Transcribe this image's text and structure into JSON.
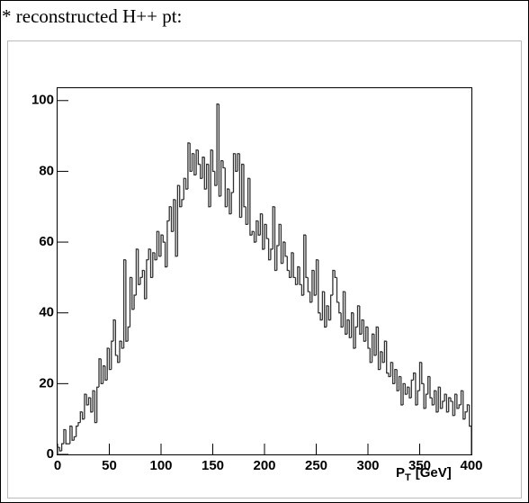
{
  "chart_data": {
    "type": "histogram",
    "title": "* reconstructed H++ pt:",
    "x_label_main": "P",
    "x_label_sub": "T",
    "x_label_unit": "[GeV]",
    "bins": [
      0,
      2,
      4,
      6,
      8,
      10,
      12,
      14,
      16,
      18,
      20,
      22,
      24,
      26,
      28,
      30,
      32,
      34,
      36,
      38,
      40,
      42,
      44,
      46,
      48,
      50,
      52,
      54,
      56,
      58,
      60,
      62,
      64,
      66,
      68,
      70,
      72,
      74,
      76,
      78,
      80,
      82,
      84,
      86,
      88,
      90,
      92,
      94,
      96,
      98,
      100,
      102,
      104,
      106,
      108,
      110,
      112,
      114,
      116,
      118,
      120,
      122,
      124,
      126,
      128,
      130,
      132,
      134,
      136,
      138,
      140,
      142,
      144,
      146,
      148,
      150,
      152,
      154,
      156,
      158,
      160,
      162,
      164,
      166,
      168,
      170,
      172,
      174,
      176,
      178,
      180,
      182,
      184,
      186,
      188,
      190,
      192,
      194,
      196,
      198,
      200,
      202,
      204,
      206,
      208,
      210,
      212,
      214,
      216,
      218,
      220,
      222,
      224,
      226,
      228,
      230,
      232,
      234,
      236,
      238,
      240,
      242,
      244,
      246,
      248,
      250,
      252,
      254,
      256,
      258,
      260,
      262,
      264,
      266,
      268,
      270,
      272,
      274,
      276,
      278,
      280,
      282,
      284,
      286,
      288,
      290,
      292,
      294,
      296,
      298,
      300,
      302,
      304,
      306,
      308,
      310,
      312,
      314,
      316,
      318,
      320,
      322,
      324,
      326,
      328,
      330,
      332,
      334,
      336,
      338,
      340,
      342,
      344,
      346,
      348,
      350,
      352,
      354,
      356,
      358,
      360,
      362,
      364,
      366,
      368,
      370,
      372,
      374,
      376,
      378,
      380,
      382,
      384,
      386,
      388,
      390,
      392,
      394,
      396,
      398,
      400
    ],
    "counts": [
      2,
      1,
      3,
      7,
      3,
      3,
      8,
      4,
      5,
      8,
      9,
      12,
      10,
      17,
      14,
      16,
      12,
      18,
      9,
      19,
      27,
      20,
      25,
      21,
      30,
      24,
      32,
      38,
      28,
      26,
      32,
      30,
      55,
      32,
      36,
      50,
      41,
      45,
      58,
      48,
      50,
      52,
      44,
      55,
      58,
      50,
      57,
      55,
      63,
      56,
      62,
      60,
      53,
      66,
      70,
      63,
      72,
      56,
      76,
      70,
      72,
      78,
      75,
      88,
      80,
      85,
      79,
      86,
      82,
      78,
      84,
      75,
      82,
      70,
      86,
      80,
      76,
      99,
      73,
      83,
      81,
      70,
      75,
      68,
      74,
      85,
      80,
      85,
      67,
      82,
      70,
      65,
      78,
      62,
      63,
      60,
      66,
      62,
      68,
      58,
      65,
      61,
      55,
      58,
      70,
      52,
      59,
      65,
      54,
      60,
      56,
      52,
      50,
      57,
      50,
      48,
      53,
      48,
      45,
      62,
      50,
      46,
      43,
      52,
      45,
      55,
      40,
      38,
      46,
      36,
      42,
      38,
      45,
      52,
      50,
      43,
      40,
      36,
      46,
      34,
      38,
      33,
      40,
      30,
      36,
      42,
      34,
      38,
      32,
      36,
      30,
      26,
      34,
      28,
      36,
      24,
      29,
      26,
      32,
      23,
      22,
      26,
      20,
      24,
      18,
      22,
      14,
      20,
      17,
      19,
      16,
      21,
      23,
      14,
      18,
      26,
      20,
      13,
      17,
      22,
      16,
      14,
      18,
      12,
      19,
      13,
      15,
      17,
      12,
      16,
      15,
      11,
      17,
      13,
      14,
      18,
      10,
      12,
      14,
      8
    ],
    "color": "#333333",
    "xlim": [
      0,
      400
    ],
    "xticks": [
      0,
      50,
      100,
      150,
      200,
      250,
      300,
      350,
      400
    ],
    "ylim": [
      0,
      103.5
    ],
    "yticks": [
      0,
      20,
      40,
      60,
      80,
      100
    ],
    "grid": false
  }
}
